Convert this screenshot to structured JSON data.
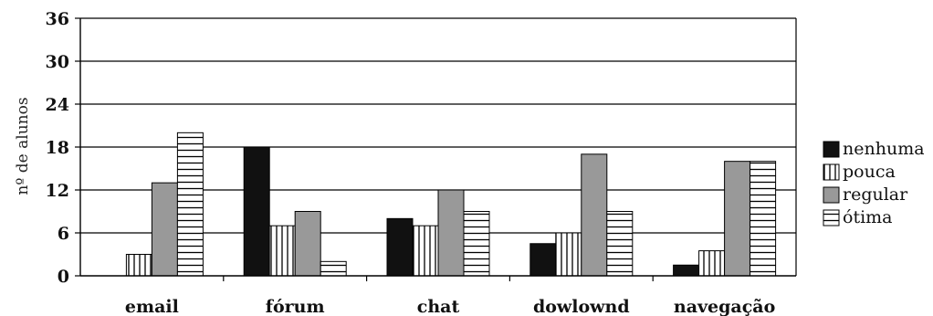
{
  "chart_data": {
    "type": "bar",
    "title": "",
    "xlabel": "",
    "ylabel": "nº de alunos",
    "ylim": [
      0,
      36
    ],
    "yticks": [
      0,
      6,
      12,
      18,
      24,
      30,
      36
    ],
    "grid": true,
    "legend_position": "right",
    "categories": [
      "email",
      "fórum",
      "chat",
      "dowlownd",
      "navegação"
    ],
    "series": [
      {
        "name": "nenhuma",
        "pattern": "solid-black",
        "values": [
          0,
          18,
          8,
          4.5,
          1.5
        ]
      },
      {
        "name": "pouca",
        "pattern": "vertical-stripes",
        "values": [
          3,
          7,
          7,
          6,
          3.5
        ]
      },
      {
        "name": "regular",
        "pattern": "solid-gray",
        "values": [
          13,
          9,
          12,
          17,
          16
        ]
      },
      {
        "name": "ótima",
        "pattern": "horizontal-stripes",
        "values": [
          20,
          2,
          9,
          9,
          16
        ]
      }
    ],
    "colors": {
      "black": "#111111",
      "gray": "#999999",
      "stroke": "#000000"
    }
  }
}
